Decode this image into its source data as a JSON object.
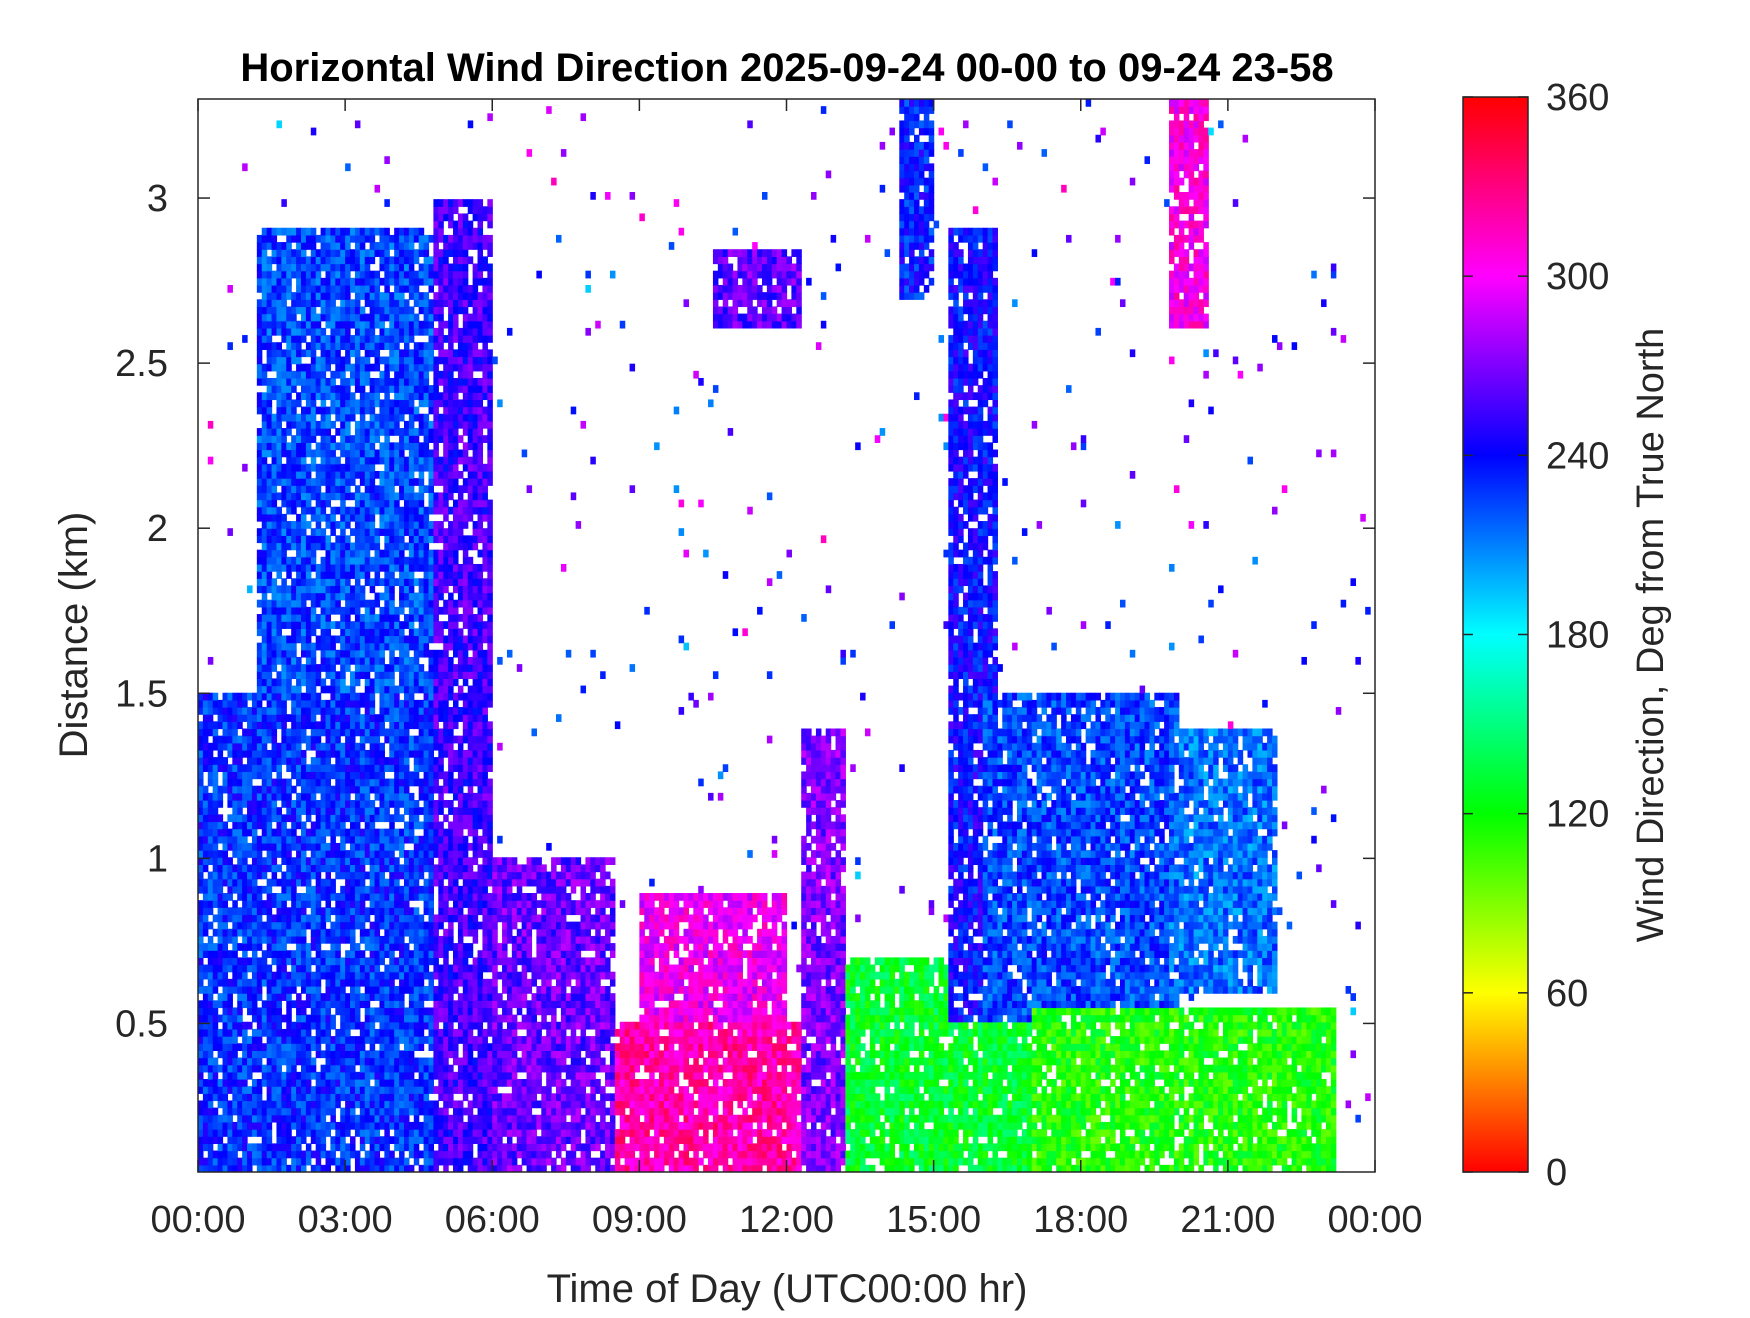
{
  "chart_data": {
    "type": "heatmap",
    "title": "Horizontal Wind Direction 2025-09-24 00-00 to 09-24 23-58",
    "xlabel": "Time of Day (UTC00:00 hr)",
    "ylabel": "Distance (km)",
    "xlim": [
      0,
      24
    ],
    "ylim": [
      0.05,
      3.3
    ],
    "x_ticks": [
      "00:00",
      "03:00",
      "06:00",
      "09:00",
      "12:00",
      "15:00",
      "18:00",
      "21:00",
      "00:00"
    ],
    "x_tick_values": [
      0,
      3,
      6,
      9,
      12,
      15,
      18,
      21,
      24
    ],
    "y_ticks": [
      "0.5",
      "1",
      "1.5",
      "2",
      "2.5",
      "3"
    ],
    "y_tick_values": [
      0.5,
      1,
      1.5,
      2,
      2.5,
      3
    ],
    "colorbar": {
      "label": "Wind Direction, Deg from True North",
      "ticks": [
        "0",
        "60",
        "120",
        "180",
        "240",
        "300",
        "360"
      ],
      "tick_values": [
        0,
        60,
        120,
        180,
        240,
        300,
        360
      ],
      "range": [
        0,
        360
      ],
      "colormap": "hsv"
    },
    "colors": {
      "missing": "#ffffff",
      "axes": "#262626",
      "text": "#262626"
    },
    "grid": false,
    "data_description_regions": [
      {
        "t": [
          0,
          4.8
        ],
        "z": [
          0.05,
          1.5
        ],
        "dir": 230
      },
      {
        "t": [
          1.2,
          4.8
        ],
        "z": [
          1.5,
          2.9
        ],
        "dir": 225
      },
      {
        "t": [
          4.8,
          6.0
        ],
        "z": [
          0.05,
          3.0
        ],
        "dir": 255
      },
      {
        "t": [
          6.0,
          8.5
        ],
        "z": [
          0.05,
          1.0
        ],
        "dir": 265
      },
      {
        "t": [
          8.5,
          12.3
        ],
        "z": [
          0.05,
          0.5
        ],
        "dir": 320
      },
      {
        "t": [
          9.0,
          12.0
        ],
        "z": [
          0.5,
          0.9
        ],
        "dir": 300
      },
      {
        "t": [
          10.5,
          12.3
        ],
        "z": [
          2.6,
          2.85
        ],
        "dir": 262
      },
      {
        "t": [
          12.3,
          13.2
        ],
        "z": [
          0.05,
          1.4
        ],
        "dir": 270
      },
      {
        "t": [
          13.2,
          17.0
        ],
        "z": [
          0.05,
          0.7
        ],
        "dir": 130
      },
      {
        "t": [
          14.3,
          15.0
        ],
        "z": [
          2.7,
          3.3
        ],
        "dir": 235
      },
      {
        "t": [
          15.3,
          16.3
        ],
        "z": [
          0.5,
          2.9
        ],
        "dir": 240
      },
      {
        "t": [
          16.0,
          20.0
        ],
        "z": [
          0.5,
          1.5
        ],
        "dir": 225
      },
      {
        "t": [
          17.0,
          23.2
        ],
        "z": [
          0.05,
          0.55
        ],
        "dir": 115
      },
      {
        "t": [
          19.8,
          22.0
        ],
        "z": [
          0.6,
          1.4
        ],
        "dir": 215
      },
      {
        "t": [
          19.8,
          20.6
        ],
        "z": [
          2.6,
          3.3
        ],
        "dir": 305
      }
    ]
  }
}
